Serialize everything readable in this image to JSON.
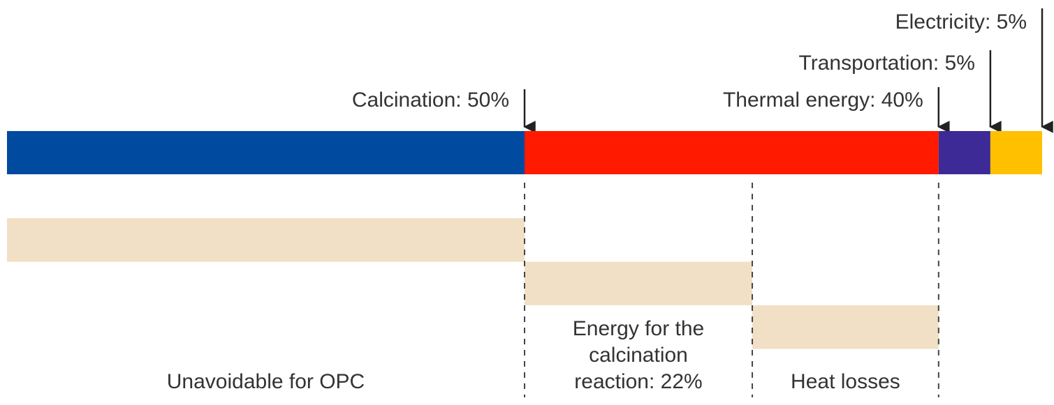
{
  "chart_data": {
    "type": "breakdown",
    "xlim": [
      0,
      100
    ],
    "values": [
      50,
      40,
      5,
      5
    ],
    "value_labels": [
      "Calcination: 50%",
      "Thermal energy: 40%",
      "Transportation: 5%",
      "Electricity: 5%"
    ],
    "colors": [
      "#004a9f",
      "#ff1a00",
      "#3d2a96",
      "#ffc000"
    ],
    "breakdown": {
      "categories": [
        "Unavoidable for OPC",
        "Energy for the calcination reaction: 22%",
        "Heat losses"
      ],
      "values": [
        50,
        22,
        18
      ],
      "color": "#f1e0c5"
    }
  }
}
